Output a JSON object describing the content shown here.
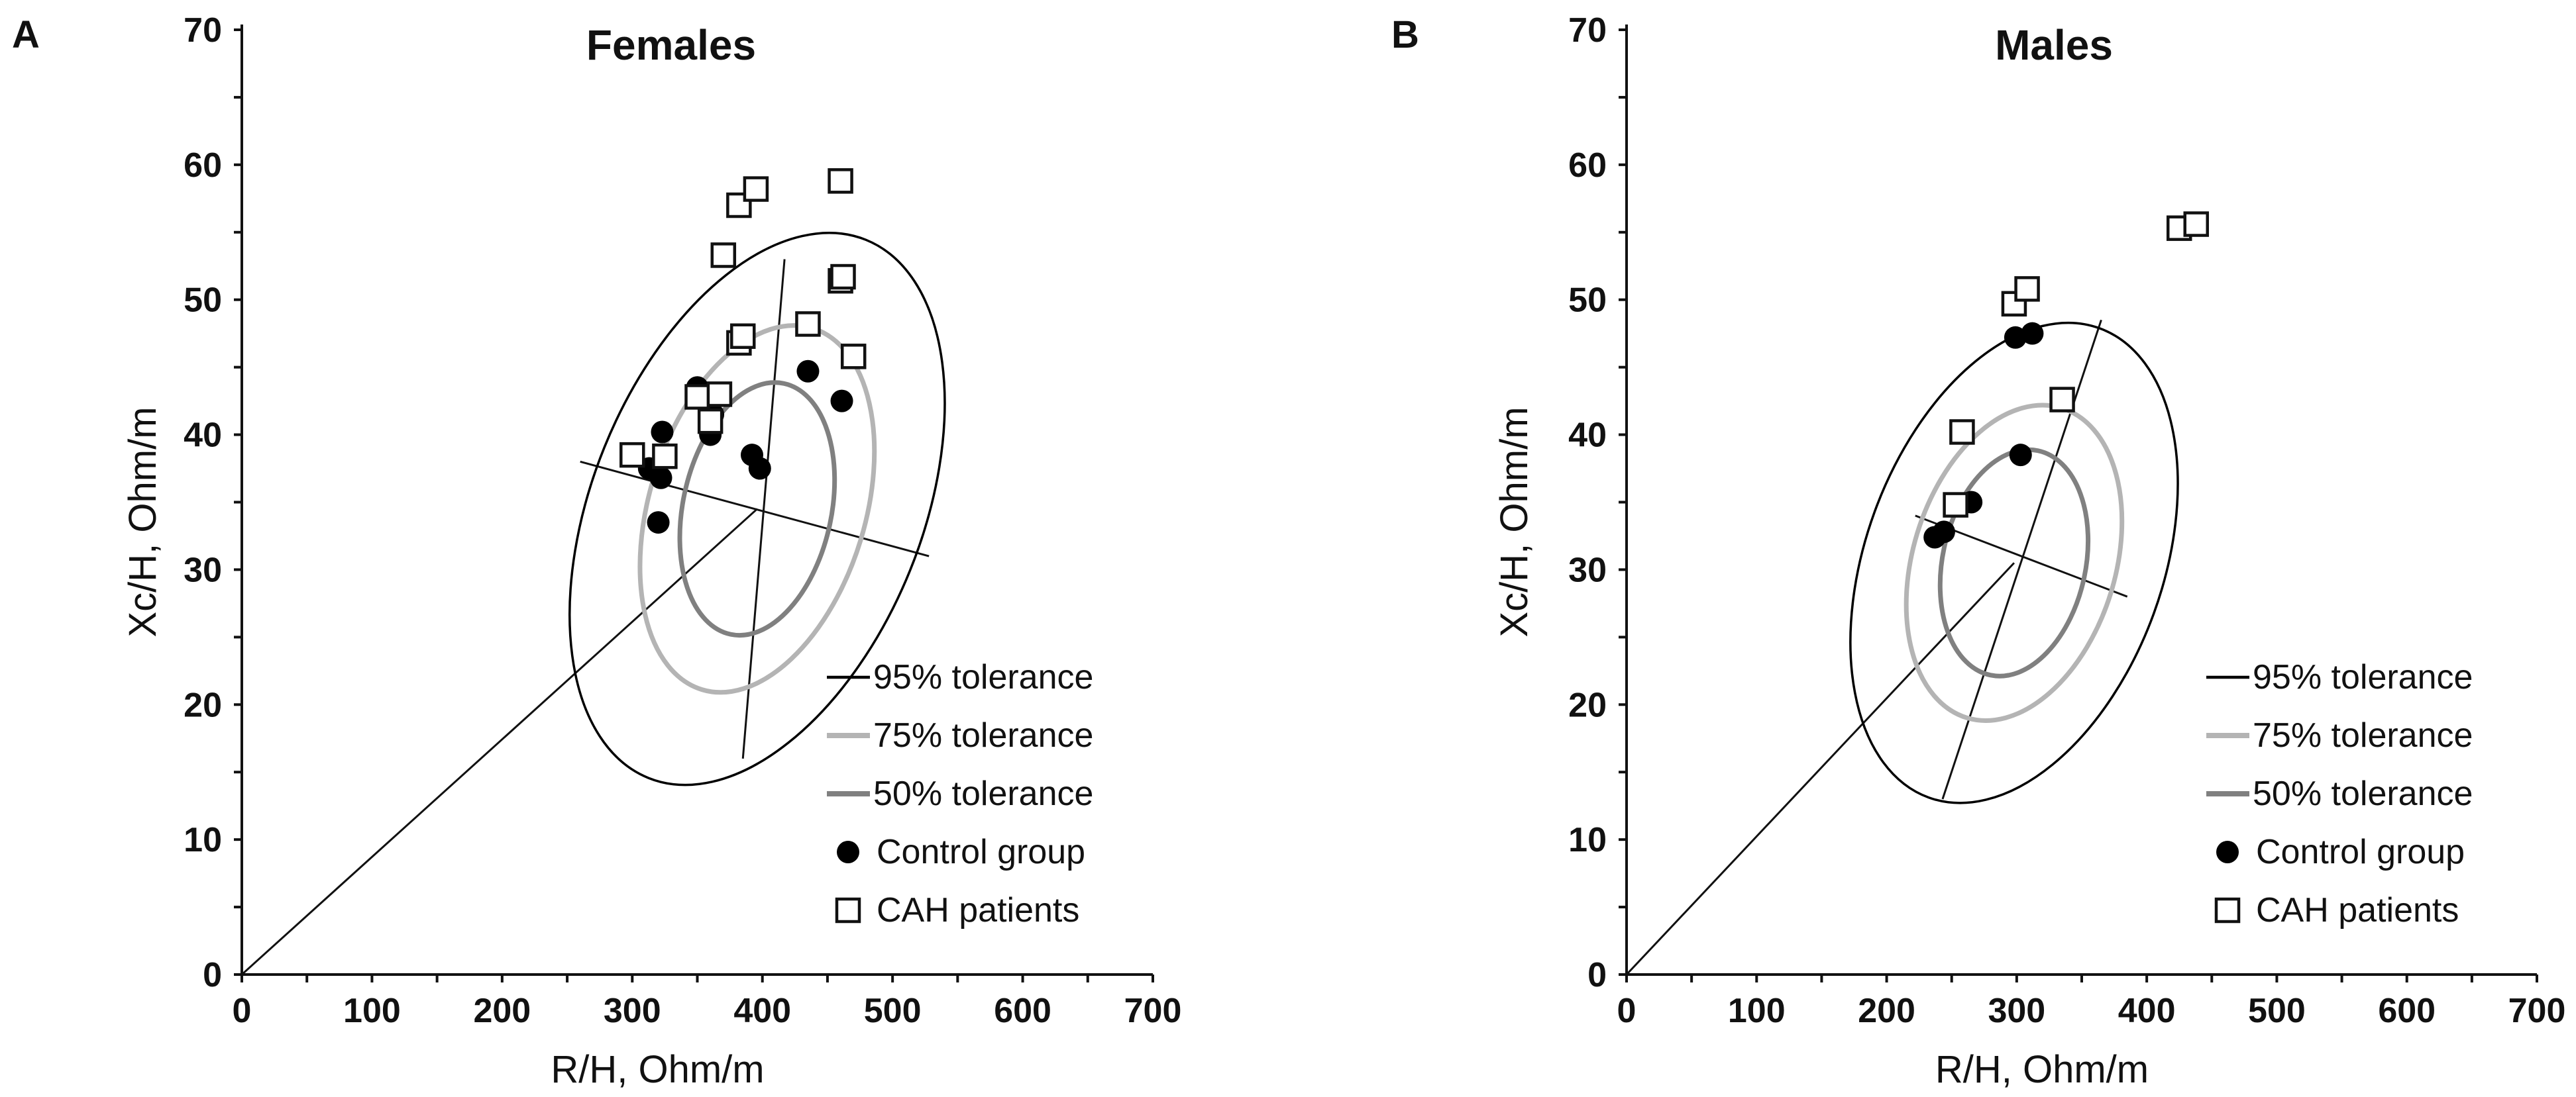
{
  "chart_data": [
    {
      "type": "scatter",
      "panel_label": "A",
      "title": "Females",
      "xlabel": "R/H, Ohm/m",
      "ylabel": "Xc/H, Ohm/m",
      "xlim": [
        0,
        700
      ],
      "ylim": [
        0,
        70
      ],
      "x_ticks": [
        "0",
        "100",
        "200",
        "300",
        "400",
        "500",
        "600",
        "700"
      ],
      "y_ticks": [
        "0",
        "10",
        "20",
        "30",
        "40",
        "50",
        "60",
        "70"
      ],
      "ellipses": [
        {
          "name": "95% tolerance",
          "color": "#000000",
          "center": [
            396,
            34.5
          ],
          "semi_major": 21.5,
          "semi_minor": 12.2,
          "angle_deg": 68
        },
        {
          "name": "75% tolerance",
          "color": "#b4b4b4",
          "center": [
            396,
            34.5
          ],
          "semi_major": 14.0,
          "semi_minor": 8.0,
          "angle_deg": 73
        },
        {
          "name": "50% tolerance",
          "color": "#808080",
          "center": [
            396,
            34.5
          ],
          "semi_major": 9.5,
          "semi_minor": 5.5,
          "angle_deg": 78
        }
      ],
      "axes_lines": {
        "major": [
          [
            385,
            16
          ],
          [
            417,
            53
          ]
        ],
        "minor": [
          [
            260,
            38
          ],
          [
            528,
            31
          ]
        ],
        "origin_line": [
          [
            0,
            0
          ],
          [
            396,
            34.5
          ]
        ]
      },
      "series": [
        {
          "name": "Control group",
          "marker": "filled-circle",
          "points": [
            [
              313,
              37.5
            ],
            [
              320,
              33.5
            ],
            [
              322,
              36.8
            ],
            [
              323,
              40.2
            ],
            [
              350,
              43.5
            ],
            [
              360,
              40.0
            ],
            [
              362,
              41.5
            ],
            [
              392,
              38.5
            ],
            [
              398,
              37.5
            ],
            [
              435,
              44.7
            ],
            [
              461,
              42.5
            ]
          ]
        },
        {
          "name": "CAH patients",
          "marker": "open-square",
          "points": [
            [
              300,
              38.5
            ],
            [
              325,
              38.4
            ],
            [
              350,
              42.8
            ],
            [
              360,
              41.0
            ],
            [
              367,
              43.0
            ],
            [
              370,
              53.3
            ],
            [
              382,
              57.0
            ],
            [
              382,
              46.8
            ],
            [
              385,
              47.3
            ],
            [
              395,
              58.2
            ],
            [
              435,
              48.2
            ],
            [
              460,
              58.8
            ],
            [
              460,
              51.4
            ],
            [
              462,
              51.7
            ],
            [
              470,
              45.8
            ]
          ]
        }
      ],
      "legend": [
        "95% tolerance",
        "75% tolerance",
        "50% tolerance",
        "Control group",
        "CAH patients"
      ]
    },
    {
      "type": "scatter",
      "panel_label": "B",
      "title": "Males",
      "xlabel": "R/H, Ohm/m",
      "ylabel": "Xc/H, Ohm/m",
      "xlim": [
        0,
        700
      ],
      "ylim": [
        0,
        70
      ],
      "x_ticks": [
        "0",
        "100",
        "200",
        "300",
        "400",
        "500",
        "600",
        "700"
      ],
      "y_ticks": [
        "0",
        "10",
        "20",
        "30",
        "40",
        "50",
        "60",
        "70"
      ],
      "ellipses": [
        {
          "name": "95% tolerance",
          "color": "#000000",
          "center": [
            298,
            30.5
          ],
          "semi_major": 18.5,
          "semi_minor": 11.0,
          "angle_deg": 70
        },
        {
          "name": "75% tolerance",
          "color": "#b4b4b4",
          "center": [
            298,
            30.5
          ],
          "semi_major": 12.0,
          "semi_minor": 7.5,
          "angle_deg": 73
        },
        {
          "name": "50% tolerance",
          "color": "#808080",
          "center": [
            298,
            30.5
          ],
          "semi_major": 8.5,
          "semi_minor": 5.3,
          "angle_deg": 78
        }
      ],
      "axes_lines": {
        "major": [
          [
            243,
            13
          ],
          [
            365,
            48.5
          ]
        ],
        "minor": [
          [
            222,
            34
          ],
          [
            385,
            28.0
          ]
        ],
        "origin_line": [
          [
            0,
            0
          ],
          [
            298,
            30.5
          ]
        ]
      },
      "series": [
        {
          "name": "Control group",
          "marker": "filled-circle",
          "points": [
            [
              237,
              32.4
            ],
            [
              244,
              32.8
            ],
            [
              265,
              35.0
            ],
            [
              303,
              38.5
            ],
            [
              299,
              47.2
            ],
            [
              312,
              47.5
            ]
          ]
        },
        {
          "name": "CAH patients",
          "marker": "open-square",
          "points": [
            [
              253,
              34.8
            ],
            [
              258,
              40.2
            ],
            [
              298,
              49.7
            ],
            [
              308,
              50.8
            ],
            [
              335,
              42.6
            ],
            [
              425,
              55.3
            ],
            [
              438,
              55.6
            ]
          ]
        }
      ],
      "legend": [
        "95% tolerance",
        "75% tolerance",
        "50% tolerance",
        "Control group",
        "CAH patients"
      ]
    }
  ]
}
